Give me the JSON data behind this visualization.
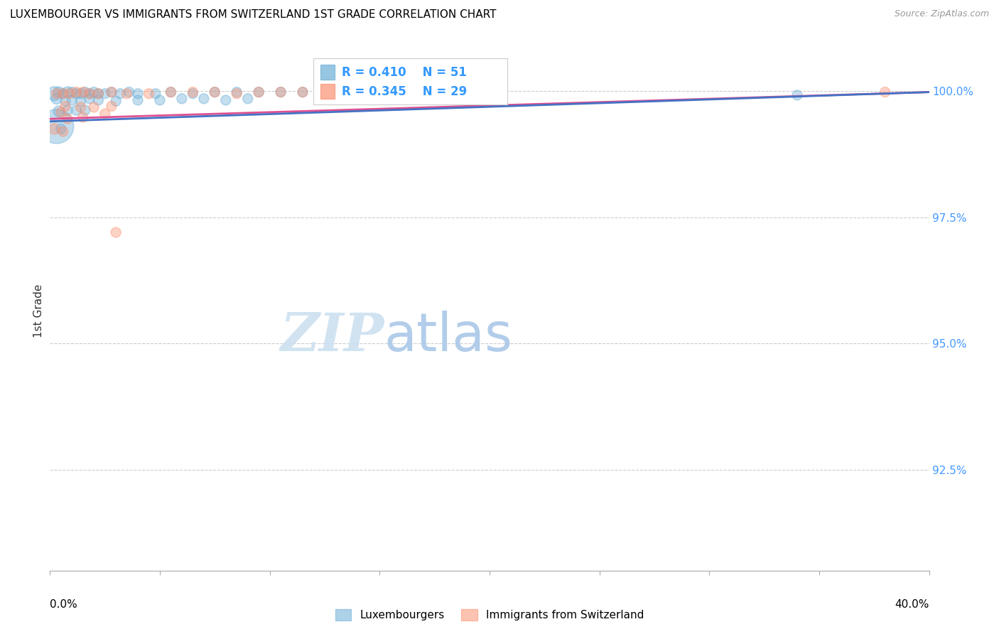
{
  "title": "LUXEMBOURGER VS IMMIGRANTS FROM SWITZERLAND 1ST GRADE CORRELATION CHART",
  "source": "Source: ZipAtlas.com",
  "ylabel": "1st Grade",
  "ylabel_right_ticks": [
    "100.0%",
    "97.5%",
    "95.0%",
    "92.5%"
  ],
  "ylabel_right_vals": [
    1.0,
    0.975,
    0.95,
    0.925
  ],
  "xmin": 0.0,
  "xmax": 0.4,
  "ymin": 0.905,
  "ymax": 1.008,
  "blue_R": 0.41,
  "blue_N": 51,
  "pink_R": 0.345,
  "pink_N": 29,
  "blue_color": "#6baed6",
  "pink_color": "#fc9272",
  "trendline_blue": "#4472c4",
  "trendline_pink": "#e05090",
  "legend_label_blue": "Luxembourgers",
  "legend_label_pink": "Immigrants from Switzerland",
  "watermark_zip": "ZIP",
  "watermark_atlas": "atlas",
  "blue_dots": [
    [
      0.002,
      0.9995
    ],
    [
      0.004,
      0.9998
    ],
    [
      0.006,
      0.9995
    ],
    [
      0.008,
      0.9998
    ],
    [
      0.01,
      0.9998
    ],
    [
      0.012,
      0.9995
    ],
    [
      0.014,
      0.9995
    ],
    [
      0.016,
      0.9998
    ],
    [
      0.018,
      0.9995
    ],
    [
      0.02,
      0.9998
    ],
    [
      0.022,
      0.9995
    ],
    [
      0.025,
      0.9995
    ],
    [
      0.028,
      0.9998
    ],
    [
      0.032,
      0.9995
    ],
    [
      0.036,
      0.9998
    ],
    [
      0.04,
      0.9995
    ],
    [
      0.048,
      0.9995
    ],
    [
      0.055,
      0.9998
    ],
    [
      0.065,
      0.9995
    ],
    [
      0.075,
      0.9998
    ],
    [
      0.085,
      0.9998
    ],
    [
      0.095,
      0.9998
    ],
    [
      0.105,
      0.9998
    ],
    [
      0.115,
      0.9998
    ],
    [
      0.125,
      0.9998
    ],
    [
      0.135,
      0.9998
    ],
    [
      0.145,
      0.9998
    ],
    [
      0.155,
      0.9998
    ],
    [
      0.165,
      0.9998
    ],
    [
      0.175,
      0.9998
    ],
    [
      0.003,
      0.9985
    ],
    [
      0.007,
      0.998
    ],
    [
      0.01,
      0.9982
    ],
    [
      0.014,
      0.998
    ],
    [
      0.018,
      0.9985
    ],
    [
      0.022,
      0.9982
    ],
    [
      0.03,
      0.998
    ],
    [
      0.04,
      0.9982
    ],
    [
      0.05,
      0.9982
    ],
    [
      0.06,
      0.9985
    ],
    [
      0.07,
      0.9985
    ],
    [
      0.08,
      0.9982
    ],
    [
      0.09,
      0.9985
    ],
    [
      0.004,
      0.996
    ],
    [
      0.008,
      0.9962
    ],
    [
      0.012,
      0.9962
    ],
    [
      0.016,
      0.9962
    ],
    [
      0.003,
      0.993
    ],
    [
      0.005,
      0.9925
    ],
    [
      0.185,
      0.9988
    ],
    [
      0.34,
      0.9992
    ]
  ],
  "blue_dot_sizes": [
    200,
    120,
    100,
    120,
    100,
    100,
    100,
    100,
    100,
    100,
    100,
    100,
    100,
    100,
    100,
    100,
    100,
    100,
    100,
    100,
    100,
    100,
    100,
    100,
    100,
    100,
    100,
    100,
    100,
    100,
    120,
    100,
    100,
    100,
    100,
    100,
    100,
    100,
    100,
    100,
    100,
    100,
    100,
    120,
    100,
    100,
    100,
    1200,
    100,
    100,
    100
  ],
  "pink_dots": [
    [
      0.003,
      0.9995
    ],
    [
      0.006,
      0.9995
    ],
    [
      0.009,
      0.9995
    ],
    [
      0.012,
      0.9998
    ],
    [
      0.015,
      0.9998
    ],
    [
      0.018,
      0.9995
    ],
    [
      0.022,
      0.9995
    ],
    [
      0.028,
      0.9998
    ],
    [
      0.035,
      0.9995
    ],
    [
      0.045,
      0.9995
    ],
    [
      0.055,
      0.9998
    ],
    [
      0.065,
      0.9998
    ],
    [
      0.075,
      0.9998
    ],
    [
      0.085,
      0.9995
    ],
    [
      0.095,
      0.9998
    ],
    [
      0.105,
      0.9998
    ],
    [
      0.115,
      0.9998
    ],
    [
      0.007,
      0.997
    ],
    [
      0.014,
      0.9968
    ],
    [
      0.02,
      0.9968
    ],
    [
      0.028,
      0.997
    ],
    [
      0.005,
      0.9958
    ],
    [
      0.008,
      0.9945
    ],
    [
      0.015,
      0.9948
    ],
    [
      0.025,
      0.9955
    ],
    [
      0.002,
      0.9925
    ],
    [
      0.006,
      0.992
    ],
    [
      0.03,
      0.972
    ],
    [
      0.38,
      0.9998
    ]
  ],
  "pink_dot_sizes": [
    100,
    100,
    100,
    100,
    100,
    100,
    100,
    100,
    100,
    100,
    100,
    100,
    100,
    100,
    100,
    100,
    100,
    100,
    100,
    100,
    100,
    100,
    100,
    100,
    100,
    120,
    100,
    100,
    100
  ]
}
